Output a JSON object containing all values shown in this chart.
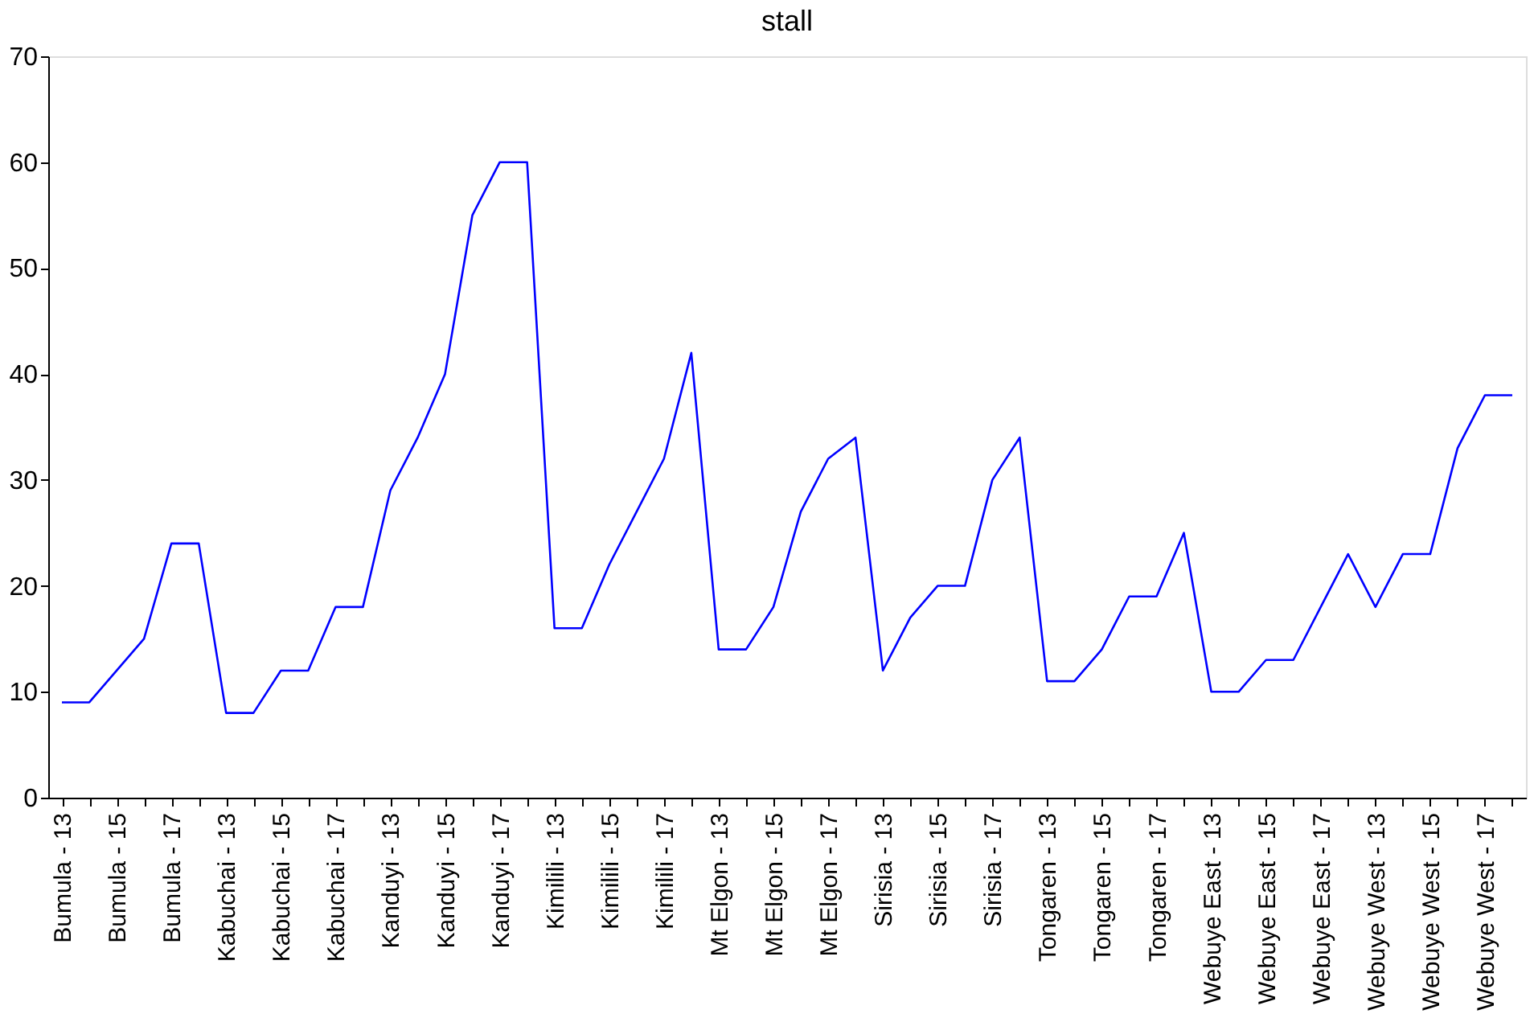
{
  "chart_data": {
    "type": "line",
    "title": "stall",
    "categories": [
      "Bumula - 13",
      null,
      "Bumula - 15",
      null,
      "Bumula - 17",
      null,
      "Kabuchai - 13",
      null,
      "Kabuchai - 15",
      null,
      "Kabuchai - 17",
      null,
      "Kanduyi - 13",
      null,
      "Kanduyi - 15",
      null,
      "Kanduyi - 17",
      null,
      "Kimilili - 13",
      null,
      "Kimilili - 15",
      null,
      "Kimilili - 17",
      null,
      "Mt Elgon - 13",
      null,
      "Mt Elgon - 15",
      null,
      "Mt Elgon - 17",
      null,
      "Sirisia - 13",
      null,
      "Sirisia - 15",
      null,
      "Sirisia - 17",
      null,
      "Tongaren - 13",
      null,
      "Tongaren - 15",
      null,
      "Tongaren - 17",
      null,
      "Webuye East - 13",
      null,
      "Webuye East - 15",
      null,
      "Webuye East - 17",
      null,
      "Webuye West - 13",
      null,
      "Webuye West - 15",
      null,
      "Webuye West - 17",
      null
    ],
    "series": [
      {
        "color": "#0000ff",
        "values": [
          9,
          9,
          12,
          15,
          24,
          24,
          8,
          8,
          12,
          12,
          18,
          18,
          29,
          34,
          40,
          55,
          60,
          60,
          16,
          16,
          22,
          27,
          32,
          42,
          14,
          14,
          18,
          27,
          32,
          34,
          12,
          17,
          20,
          20,
          30,
          34,
          11,
          11,
          14,
          19,
          19,
          25,
          10,
          10,
          13,
          13,
          18,
          23,
          18,
          23,
          23,
          33,
          38,
          38
        ]
      }
    ],
    "ylim": [
      0,
      70
    ],
    "yticks": [
      0,
      10,
      20,
      30,
      40,
      50,
      60,
      70
    ],
    "grid": false,
    "marker": "none",
    "line_style": "solid"
  }
}
